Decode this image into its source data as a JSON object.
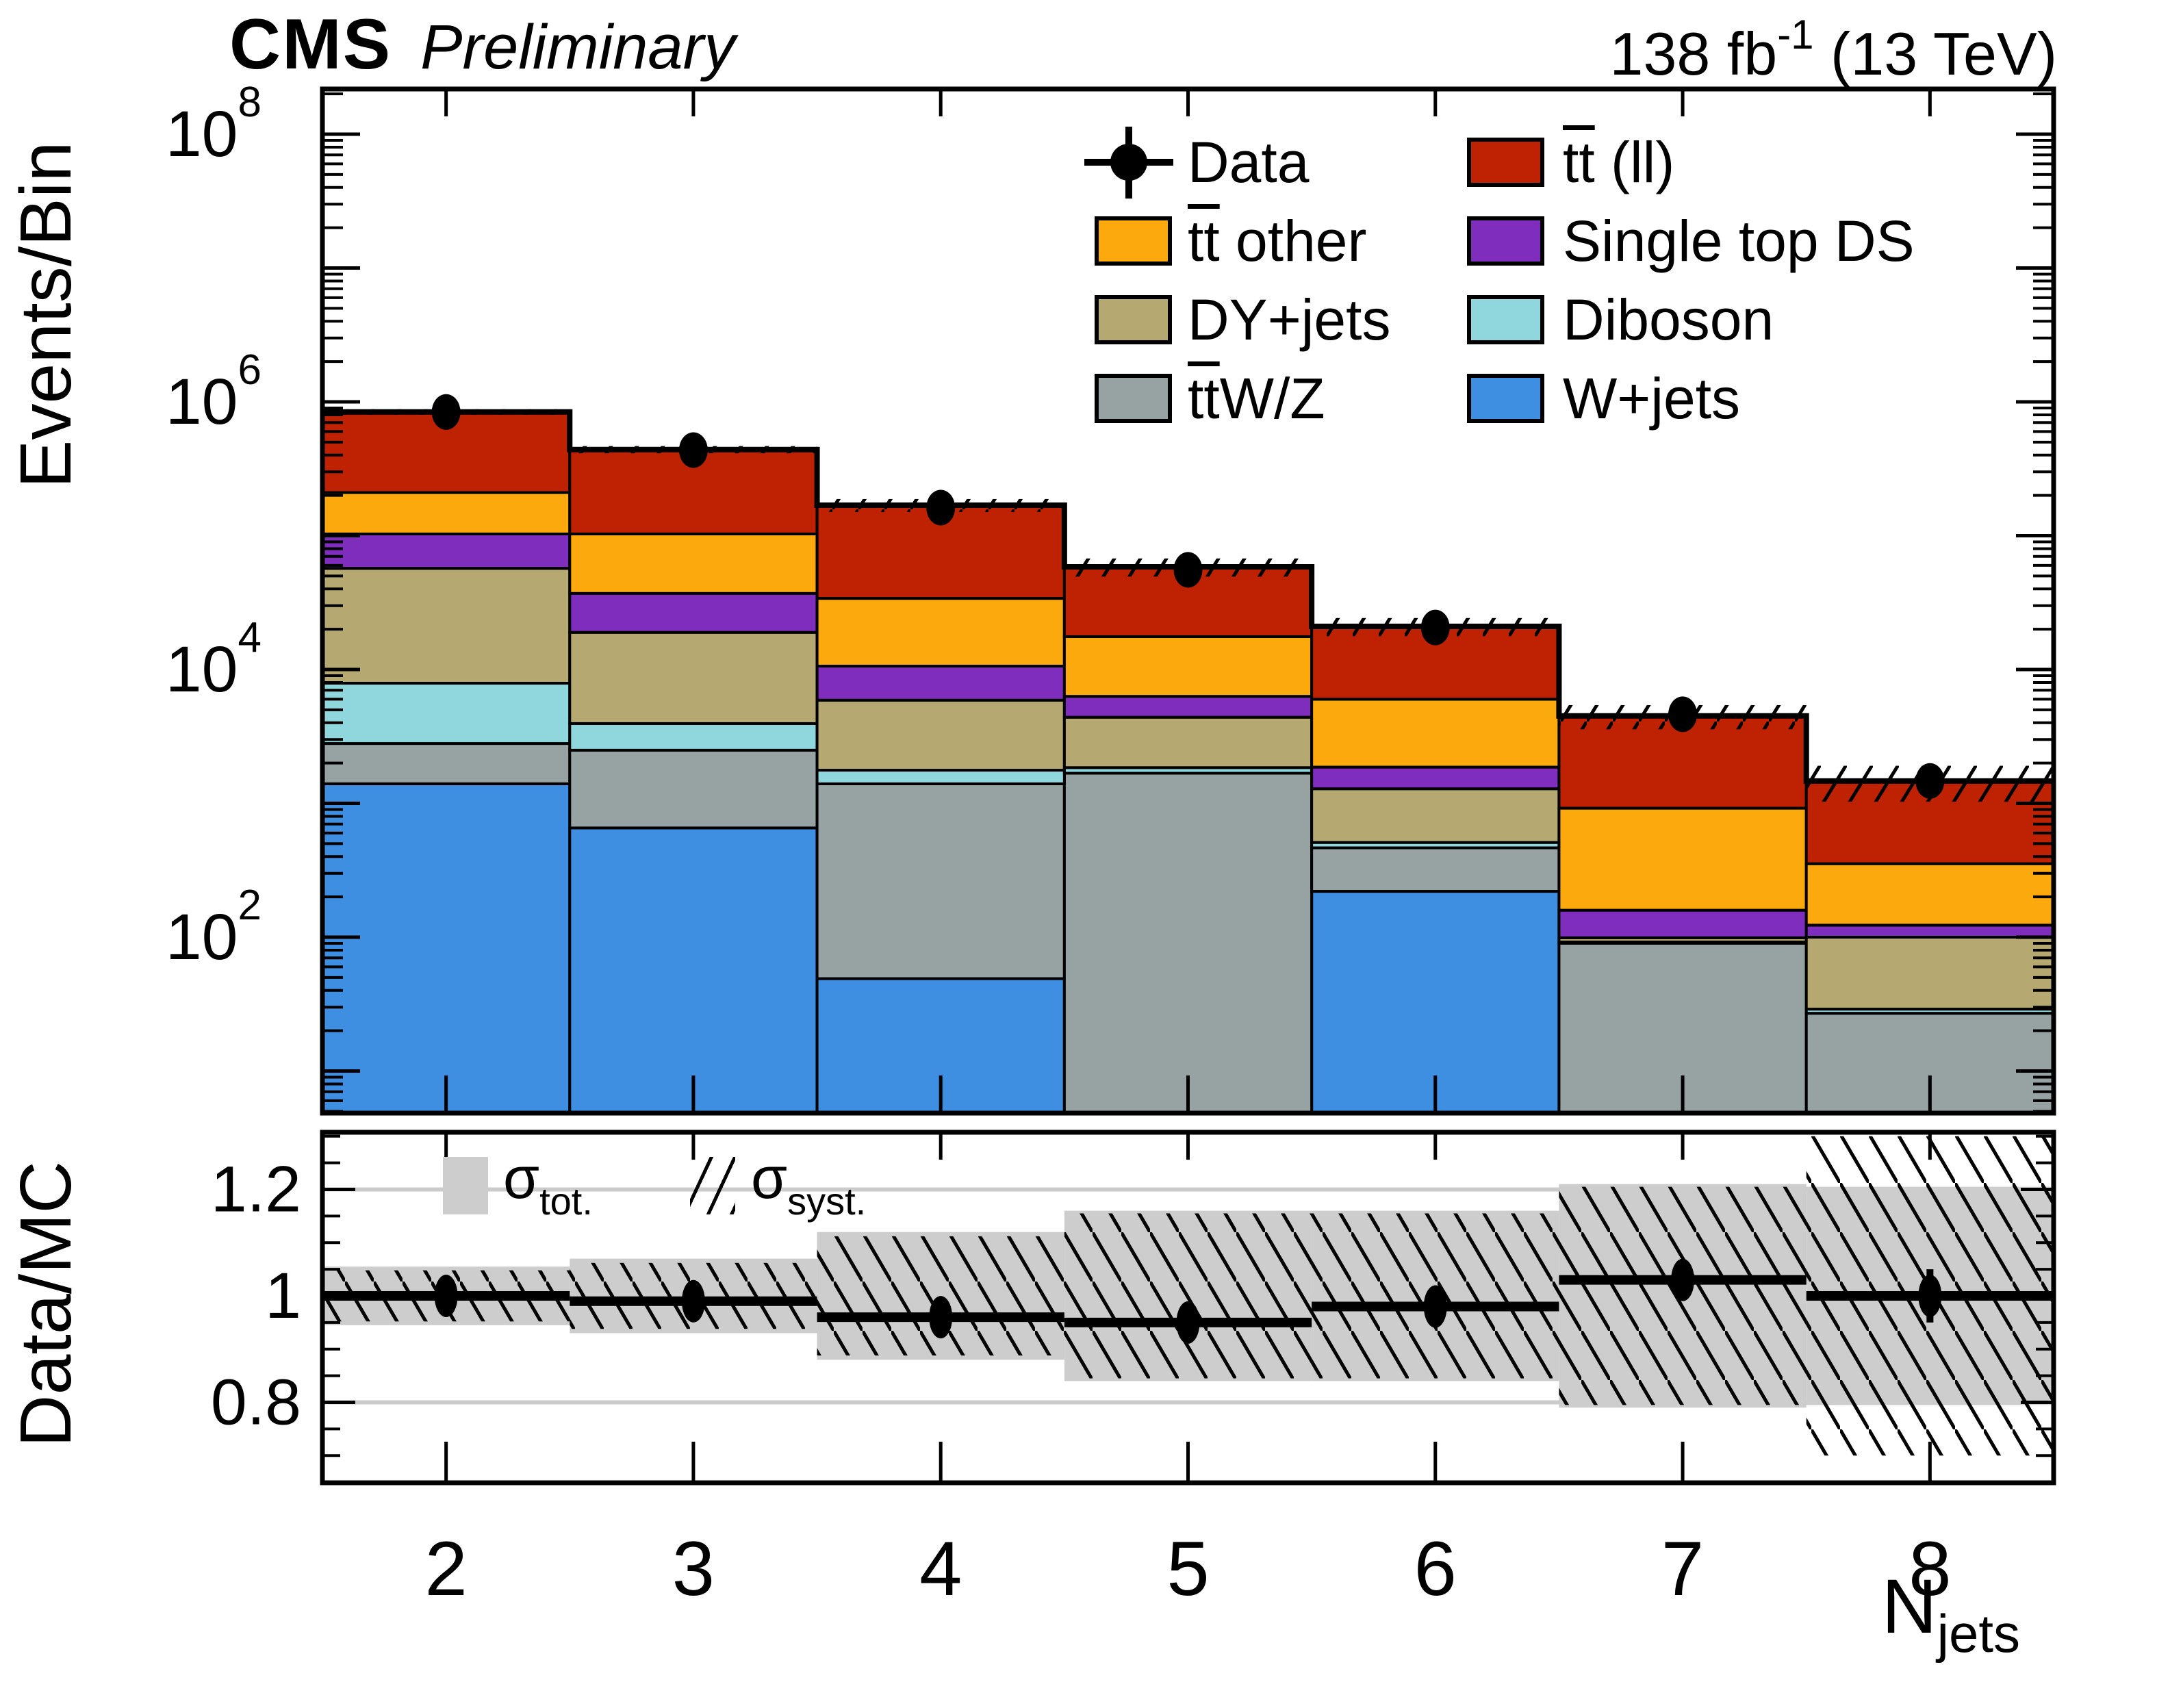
{
  "header": {
    "cms": "CMS",
    "preliminary": "Preliminary",
    "lumi": "138 fb",
    "lumi_sup": "-1",
    "energy": " (13 TeV)"
  },
  "axes": {
    "main_y_title": "Events/Bin",
    "ratio_y_title": "Data/MC",
    "x_title": "N",
    "x_title_sub": "jets",
    "main_y_tick_exponents": [
      2,
      4,
      6,
      8
    ],
    "ratio_tick_labels": [
      "1.2",
      "1",
      "0.8"
    ],
    "ratio_tick_values": [
      1.2,
      1.0,
      0.8
    ],
    "x_tick_labels": [
      "2",
      "3",
      "4",
      "5",
      "6",
      "7",
      "8"
    ]
  },
  "legend": {
    "columns": [
      [
        {
          "type": "data-marker",
          "parts": [
            {
              "t": "Data"
            }
          ]
        },
        {
          "type": "swatch",
          "series": "tt-other",
          "parts": [
            {
              "t": "tt",
              "bar": true
            },
            {
              "t": " other"
            }
          ]
        },
        {
          "type": "swatch",
          "series": "dy-jets",
          "parts": [
            {
              "t": "DY+jets"
            }
          ]
        },
        {
          "type": "swatch",
          "series": "ttwz",
          "parts": [
            {
              "t": "tt",
              "bar": true
            },
            {
              "t": "W/Z"
            }
          ]
        }
      ],
      [
        {
          "type": "swatch",
          "series": "tt-ll",
          "parts": [
            {
              "t": "tt",
              "bar": true
            },
            {
              "t": " (ll)"
            }
          ]
        },
        {
          "type": "swatch",
          "series": "single-top",
          "parts": [
            {
              "t": "Single top DS"
            }
          ]
        },
        {
          "type": "swatch",
          "series": "diboson",
          "parts": [
            {
              "t": "Diboson"
            }
          ]
        },
        {
          "type": "swatch",
          "series": "w-jets",
          "parts": [
            {
              "t": "W+jets"
            }
          ]
        }
      ]
    ]
  },
  "ratio_legend": {
    "tot": {
      "symbol": "σ",
      "sub": "tot."
    },
    "syst": {
      "symbol": "σ",
      "sub": "syst."
    }
  },
  "colors": {
    "tt-ll": "#bf2203",
    "tt-other": "#fca90e",
    "single-top": "#7e2dbd",
    "dy-jets": "#b5a971",
    "diboson": "#90d6dd",
    "ttwz": "#97a3a3",
    "w-jets": "#3e8ee1",
    "band-gray": "#cdcdcd",
    "gridline": "#cbcbcb",
    "frame": "#000000"
  },
  "chart_data": {
    "type": "bar",
    "subtype": "stacked-log-histogram-with-ratio",
    "title": "CMS Preliminary, 138 fb-1 (13 TeV)",
    "xlabel": "N_jets",
    "ylabel": "Events/Bin",
    "ratio_ylabel": "Data/MC",
    "categories": [
      2,
      3,
      4,
      5,
      6,
      7,
      8
    ],
    "bin_edges": [
      1.5,
      2.5,
      3.5,
      4.5,
      5.5,
      6.5,
      7.5,
      8.5
    ],
    "x_range": [
      1.5,
      8.5
    ],
    "main_y_range": [
      4.85,
      220000000
    ],
    "main_y_scale": "log",
    "ratio_y_range": [
      0.649,
      1.307
    ],
    "ratio_gridlines": [
      0.8,
      1.0,
      1.2
    ],
    "grid": false,
    "legend_position": "top-right-inside",
    "series": [
      {
        "key": "w-jets",
        "name": "W+jets",
        "values": [
          1400,
          655,
          49,
          4,
          220,
          4,
          4
        ]
      },
      {
        "key": "ttwz",
        "name": "ttW/Z",
        "values": [
          1400,
          1840,
          1350,
          1675,
          245,
          86,
          23
        ]
      },
      {
        "key": "diboson",
        "name": "Diboson",
        "values": [
          5100,
          1450,
          370,
          170,
          45,
          2,
          2
        ]
      },
      {
        "key": "dy-jets",
        "name": "DY+jets",
        "values": [
          49100,
          15000,
          4130,
          2550,
          775,
          7,
          71
        ]
      },
      {
        "key": "single-top",
        "name": "Single top DS",
        "values": [
          46000,
          18100,
          4700,
          1900,
          580,
          60,
          23
        ]
      },
      {
        "key": "tt-other",
        "name": "tt other",
        "values": [
          107000,
          66000,
          23400,
          11300,
          4130,
          761,
          231
        ]
      },
      {
        "key": "tt-ll",
        "name": "tt (ll)",
        "values": [
          630000,
          337000,
          135000,
          40900,
          15000,
          3580,
          1115
        ]
      }
    ],
    "mc_totals": [
      840000,
      440045,
      168999,
      58499,
      20995,
      4500,
      1469
    ],
    "data_points": [
      840000,
      436000,
      162000,
      55600,
      20600,
      4630,
      1470
    ],
    "ratio": {
      "values": [
        1.0,
        0.99,
        0.96,
        0.95,
        0.98,
        1.03,
        1.0
      ],
      "stat_err": [
        0.004,
        0.005,
        0.008,
        0.012,
        0.018,
        0.03,
        0.05
      ],
      "tot_unc": [
        0.055,
        0.07,
        0.12,
        0.16,
        0.16,
        0.21,
        0.205
      ],
      "syst_unc": [
        0.048,
        0.062,
        0.112,
        0.155,
        0.155,
        0.205,
        0.3
      ]
    }
  }
}
